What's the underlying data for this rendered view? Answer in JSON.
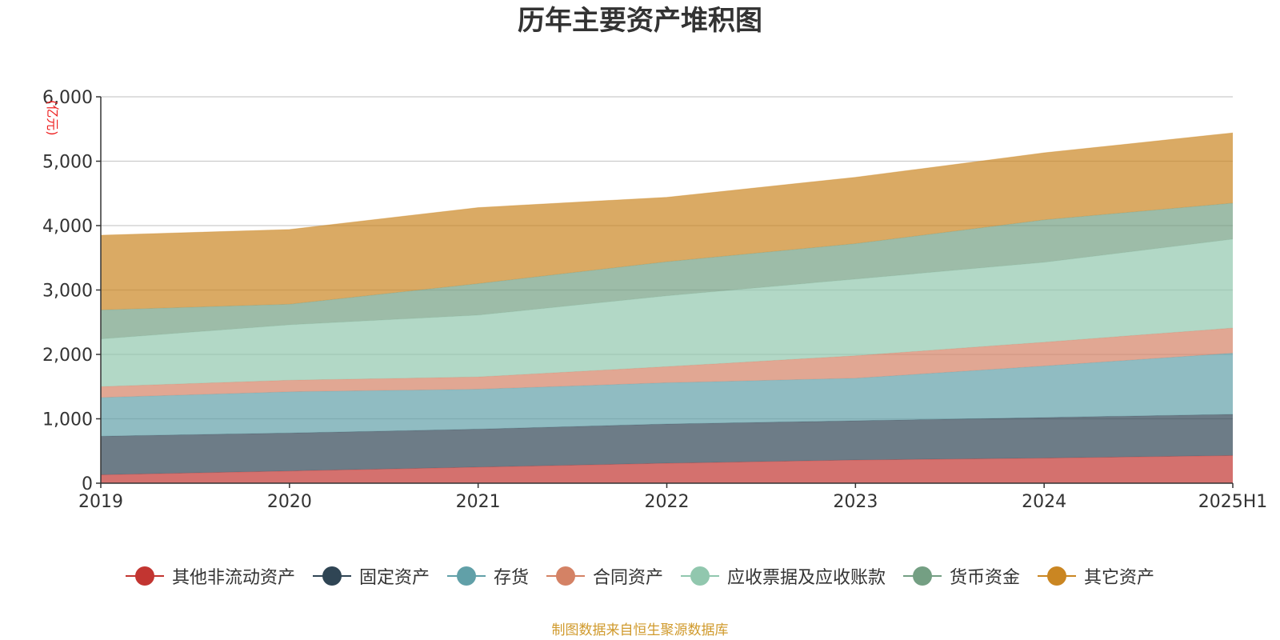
{
  "title": "历年主要资产堆积图",
  "source_note": "制图数据来自恒生聚源数据库",
  "chart_data": {
    "type": "area",
    "stacked": true,
    "title": "历年主要资产堆积图",
    "unit": "(亿元)",
    "categories": [
      "2019",
      "2020",
      "2021",
      "2022",
      "2023",
      "2024",
      "2025H1"
    ],
    "ylim": [
      0,
      6000
    ],
    "yticks": [
      0,
      1000,
      2000,
      3000,
      4000,
      5000,
      6000
    ],
    "ytick_labels": [
      "0",
      "1,000",
      "2,000",
      "3,000",
      "4,000",
      "5,000",
      "6,000"
    ],
    "grid": true,
    "legend_position": "bottom",
    "series": [
      {
        "name": "其他非流动资产",
        "color": "#c23531",
        "values": [
          130,
          190,
          250,
          310,
          360,
          390,
          430
        ]
      },
      {
        "name": "固定资产",
        "color": "#2f4554",
        "values": [
          600,
          590,
          590,
          610,
          610,
          630,
          640
        ]
      },
      {
        "name": "存货",
        "color": "#61a0a8",
        "values": [
          600,
          640,
          620,
          640,
          660,
          800,
          950
        ]
      },
      {
        "name": "合同资产",
        "color": "#d48265",
        "values": [
          170,
          180,
          190,
          250,
          350,
          370,
          390
        ]
      },
      {
        "name": "应收票据及应收账款",
        "color": "#91c7ae",
        "values": [
          740,
          860,
          960,
          1100,
          1190,
          1240,
          1380
        ]
      },
      {
        "name": "货币资金",
        "color": "#749f83",
        "values": [
          450,
          320,
          490,
          530,
          550,
          660,
          560
        ]
      },
      {
        "name": "其它资产",
        "color": "#ca8622",
        "values": [
          1160,
          1160,
          1180,
          1000,
          1030,
          1040,
          1090
        ]
      }
    ]
  }
}
